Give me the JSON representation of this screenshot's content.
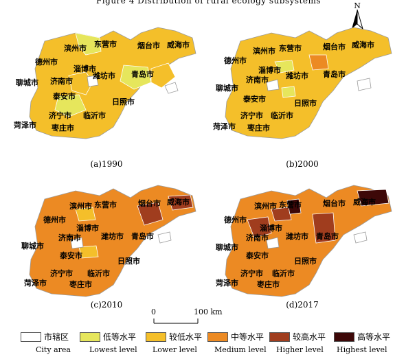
{
  "title": "Figure 4  Distribution of rural ecology subsystems",
  "compass": {
    "label": "N"
  },
  "colors": {
    "city_area": "#ffffff",
    "lowest": "#e6e65c",
    "lower": "#f4bf2a",
    "medium": "#ec8a23",
    "higher": "#a03d1e",
    "highest": "#3d0808",
    "outline": "#9a9a9a"
  },
  "cities": {
    "binzhou": "滨州市",
    "dongying": "东营市",
    "yantai": "烟台市",
    "weihai": "威海市",
    "dezhou": "德州市",
    "zibo": "淄博市",
    "weifang": "潍坊市",
    "qingdao": "青岛市",
    "liaocheng": "聊城市",
    "jinan": "济南市",
    "taian": "泰安市",
    "rizhao": "日照市",
    "jining": "济宁市",
    "linyi": "临沂市",
    "heze": "菏泽市",
    "zaozhuang": "枣庄市"
  },
  "panels": [
    {
      "caption": "(a)1990",
      "base_level": "lower",
      "accent_levels": [
        "lowest",
        "lower"
      ]
    },
    {
      "caption": "(b)2000",
      "base_level": "lower",
      "accent_levels": [
        "lowest",
        "medium"
      ]
    },
    {
      "caption": "(c)2010",
      "base_level": "medium",
      "accent_levels": [
        "lower",
        "higher"
      ]
    },
    {
      "caption": "(d)2017",
      "base_level": "medium",
      "accent_levels": [
        "higher",
        "highest"
      ]
    }
  ],
  "scalebar": {
    "zero": "0",
    "max": "100 km"
  },
  "legend": [
    {
      "cn": "市辖区",
      "en": "City area",
      "level": "city_area"
    },
    {
      "cn": "低等水平",
      "en": "Lowest level",
      "level": "lowest"
    },
    {
      "cn": "较低水平",
      "en": "Lower level",
      "level": "lower"
    },
    {
      "cn": "中等水平",
      "en": "Medium level",
      "level": "medium"
    },
    {
      "cn": "较高水平",
      "en": "Higher level",
      "level": "higher"
    },
    {
      "cn": "高等水平",
      "en": "Highest level",
      "level": "highest"
    }
  ]
}
